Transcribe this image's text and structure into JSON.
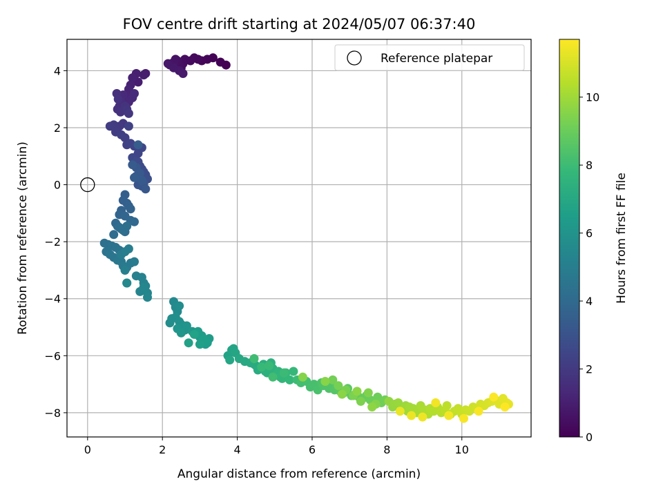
{
  "chart_data": {
    "type": "scatter",
    "title": "FOV centre drift starting at 2024/05/07 06:37:40",
    "xlabel": "Angular distance from reference (arcmin)",
    "ylabel": "Rotation from reference (arcmin)",
    "xlim": [
      -0.55,
      11.85
    ],
    "ylim": [
      -8.85,
      5.1
    ],
    "xticks": [
      0,
      2,
      4,
      6,
      8,
      10
    ],
    "yticks": [
      -8,
      -6,
      -4,
      -2,
      0,
      2,
      4
    ],
    "grid": true,
    "legend": {
      "position": "top-right",
      "entries": [
        "Reference platepar"
      ]
    },
    "reference_point": {
      "x": 0,
      "y": 0,
      "label": "Reference platepar"
    },
    "colorbar": {
      "label": "Hours from first FF file",
      "range": [
        0,
        11.7
      ],
      "ticks": [
        0,
        2,
        4,
        6,
        8,
        10
      ],
      "colormap": "viridis"
    },
    "series": [
      {
        "x": [
          3.7,
          3.55,
          3.35,
          3.2,
          3.05,
          2.95,
          2.85,
          2.75,
          2.6,
          2.55,
          2.5,
          2.45,
          2.4,
          2.35,
          2.3,
          2.2,
          2.15,
          2.3,
          2.45,
          2.55,
          1.55,
          1.5,
          1.35,
          1.3,
          1.2,
          1.15,
          1.1,
          1.05,
          1.0,
          1.1,
          1.2,
          1.25,
          0.95,
          0.9,
          0.85,
          0.8,
          0.78,
          0.82,
          0.88,
          0.95,
          1.0,
          1.05,
          1.1,
          0.95,
          0.85,
          0.75,
          0.7,
          0.6,
          0.75,
          0.9,
          1.0,
          1.1,
          1.05,
          1.15,
          1.25,
          1.35,
          1.45,
          1.2,
          1.3,
          1.35,
          1.4,
          1.45,
          1.5,
          1.55,
          1.6,
          1.5,
          1.4,
          1.3,
          1.35,
          1.45,
          1.5,
          1.55,
          1.3,
          1.4,
          1.45,
          1.2,
          1.25,
          1.35,
          1.0,
          0.95,
          1.05,
          1.1,
          1.15,
          0.9,
          0.85,
          1.0,
          1.15,
          1.25,
          0.75,
          0.8,
          0.9,
          1.0,
          0.7,
          0.85,
          0.95,
          1.05,
          0.45,
          0.55,
          0.65,
          0.75,
          0.85,
          0.5,
          0.6,
          0.7,
          0.8,
          0.9,
          0.95,
          1.05,
          1.15,
          1.25,
          0.9,
          1.0,
          1.1,
          1.0,
          1.05,
          1.3,
          1.45,
          1.5,
          1.55,
          1.4,
          1.6,
          1.6,
          1.5,
          1.05,
          2.3,
          2.35,
          2.4,
          2.45,
          2.2,
          2.25,
          2.35,
          2.45,
          2.5,
          2.55,
          2.6,
          2.65,
          2.4,
          2.5,
          2.8,
          2.9,
          3.0,
          3.1,
          3.15,
          3.25,
          2.95,
          3.05,
          3.2,
          3.1,
          3.0,
          2.7,
          2.85,
          3.75,
          3.85,
          3.9,
          3.95,
          3.8,
          4.05,
          4.2,
          4.35,
          4.45,
          4.5,
          4.55,
          4.6,
          4.7,
          4.75,
          4.8,
          4.9,
          4.95,
          5.0,
          5.05,
          5.1,
          5.15,
          5.2,
          5.3,
          5.4,
          5.5,
          4.65,
          4.85,
          5.25,
          5.6,
          4.45,
          4.95,
          5.7,
          5.85,
          5.95,
          6.05,
          6.15,
          6.25,
          6.3,
          6.45,
          6.5,
          6.6,
          6.65,
          6.75,
          6.85,
          6.95,
          7.05,
          7.15,
          7.25,
          7.35,
          7.45,
          7.55,
          7.65,
          7.75,
          7.85,
          7.95,
          6.55,
          6.7,
          6.9,
          7.1,
          7.3,
          7.5,
          7.7,
          5.75,
          6.35,
          6.8,
          7.2,
          7.6,
          8.05,
          8.15,
          8.2,
          8.3,
          8.4,
          8.5,
          8.55,
          8.6,
          8.7,
          8.8,
          8.9,
          9.0,
          9.1,
          9.15,
          9.25,
          9.35,
          9.45,
          9.55,
          9.6,
          9.7,
          9.8,
          9.9,
          10.0,
          10.1,
          10.2,
          10.3,
          10.4,
          10.5,
          10.6,
          10.7,
          10.8,
          10.9,
          11.0,
          11.1,
          11.2,
          11.25,
          8.35,
          8.65,
          8.95,
          9.3,
          9.65,
          10.05,
          10.45,
          10.85,
          11.15
        ],
        "y": [
          4.2,
          4.3,
          4.45,
          4.4,
          4.35,
          4.4,
          4.45,
          4.35,
          4.4,
          4.25,
          4.1,
          4.2,
          4.35,
          4.4,
          4.3,
          4.2,
          4.25,
          4.1,
          4.0,
          3.9,
          3.9,
          3.85,
          3.6,
          3.9,
          3.75,
          3.5,
          3.35,
          3.15,
          2.95,
          2.9,
          3.05,
          3.2,
          3.15,
          2.9,
          2.75,
          2.65,
          3.2,
          3.0,
          2.55,
          2.6,
          2.75,
          2.65,
          2.5,
          2.15,
          2.05,
          1.95,
          2.1,
          2.05,
          1.85,
          1.75,
          1.65,
          2.05,
          1.4,
          1.45,
          1.35,
          1.1,
          1.3,
          0.95,
          0.85,
          0.8,
          0.65,
          0.55,
          0.45,
          0.35,
          0.2,
          0.1,
          0.15,
          0.3,
          0.0,
          -0.05,
          0.05,
          -0.15,
          0.6,
          0.4,
          0.15,
          0.7,
          0.25,
          1.4,
          -0.35,
          -0.55,
          -0.65,
          -0.75,
          -0.85,
          -0.9,
          -1.05,
          -1.1,
          -1.25,
          -1.3,
          -1.35,
          -1.45,
          -1.55,
          -1.65,
          -1.75,
          -1.5,
          -1.6,
          -1.45,
          -2.05,
          -2.1,
          -2.15,
          -2.2,
          -2.3,
          -2.35,
          -2.45,
          -2.55,
          -2.65,
          -2.7,
          -2.85,
          -2.9,
          -2.75,
          -2.7,
          -2.45,
          -2.35,
          -2.25,
          -3.0,
          -3.45,
          -3.2,
          -3.25,
          -3.45,
          -3.55,
          -3.75,
          -3.8,
          -3.95,
          -3.6,
          -3.45,
          -4.1,
          -4.3,
          -4.45,
          -4.25,
          -4.85,
          -4.7,
          -4.65,
          -4.8,
          -4.9,
          -5.0,
          -5.1,
          -4.95,
          -5.05,
          -5.2,
          -5.15,
          -5.25,
          -5.35,
          -5.5,
          -5.6,
          -5.4,
          -5.15,
          -5.3,
          -5.55,
          -5.45,
          -5.6,
          -5.55,
          -5.25,
          -6.0,
          -5.8,
          -5.75,
          -5.9,
          -6.15,
          -6.1,
          -6.2,
          -6.25,
          -6.3,
          -6.35,
          -6.5,
          -6.45,
          -6.3,
          -6.55,
          -6.6,
          -6.25,
          -6.45,
          -6.7,
          -6.65,
          -6.55,
          -6.75,
          -6.8,
          -6.6,
          -6.85,
          -6.55,
          -6.4,
          -6.35,
          -6.6,
          -6.85,
          -6.1,
          -6.75,
          -6.95,
          -6.9,
          -7.1,
          -7.0,
          -7.2,
          -6.95,
          -7.05,
          -7.15,
          -7.0,
          -7.2,
          -7.1,
          -7.25,
          -7.3,
          -7.15,
          -7.4,
          -7.35,
          -7.45,
          -7.5,
          -7.4,
          -7.55,
          -7.6,
          -7.45,
          -7.65,
          -7.55,
          -6.85,
          -7.05,
          -7.2,
          -7.4,
          -7.6,
          -7.3,
          -7.7,
          -6.75,
          -6.9,
          -7.35,
          -7.25,
          -7.8,
          -7.6,
          -7.8,
          -7.7,
          -7.65,
          -7.85,
          -7.75,
          -7.95,
          -7.8,
          -7.85,
          -8.0,
          -7.75,
          -7.9,
          -8.05,
          -7.85,
          -7.95,
          -7.8,
          -8.0,
          -7.9,
          -7.75,
          -8.05,
          -7.95,
          -7.85,
          -8.05,
          -7.9,
          -7.95,
          -7.8,
          -7.85,
          -7.7,
          -7.75,
          -7.65,
          -7.6,
          -7.55,
          -7.7,
          -7.5,
          -7.65,
          -7.7,
          -7.95,
          -8.1,
          -8.15,
          -7.65,
          -8.1,
          -8.2,
          -7.95,
          -7.45,
          -7.8
        ],
        "hours": "increasing along point order from 0 to 11.7"
      }
    ]
  }
}
